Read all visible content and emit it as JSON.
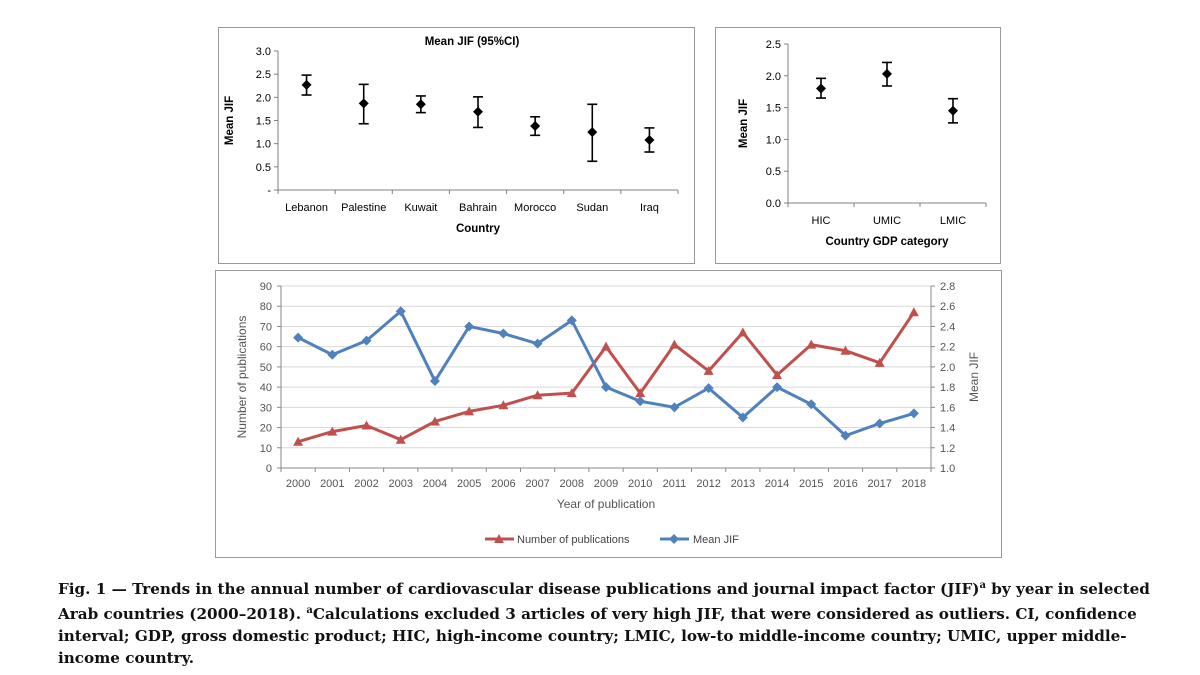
{
  "chart_data": [
    {
      "type": "errorbar",
      "title": "Mean JIF (95%CI)",
      "xlabel": "Country",
      "ylabel": "Mean JIF",
      "ylim": [
        0,
        3.0
      ],
      "yticks": [
        "-",
        "0.5",
        "1.0",
        "1.5",
        "2.0",
        "2.5",
        "3.0"
      ],
      "categories": [
        "Lebanon",
        "Palestine",
        "Kuwait",
        "Bahrain",
        "Morocco",
        "Sudan",
        "Iraq"
      ],
      "mean": [
        2.27,
        1.87,
        1.85,
        1.69,
        1.38,
        1.25,
        1.08
      ],
      "lower": [
        2.05,
        1.43,
        1.67,
        1.35,
        1.18,
        0.62,
        0.82
      ],
      "upper": [
        2.48,
        2.28,
        2.03,
        2.01,
        1.58,
        1.85,
        1.34
      ]
    },
    {
      "type": "errorbar",
      "title": "",
      "xlabel": "Country GDP category",
      "ylabel": "Mean JIF",
      "ylim": [
        0,
        2.5
      ],
      "yticks": [
        "0.0",
        "0.5",
        "1.0",
        "1.5",
        "2.0",
        "2.5"
      ],
      "categories": [
        "HIC",
        "UMIC",
        "LMIC"
      ],
      "mean": [
        1.8,
        2.03,
        1.45
      ],
      "lower": [
        1.65,
        1.84,
        1.26
      ],
      "upper": [
        1.96,
        2.21,
        1.64
      ]
    },
    {
      "type": "line",
      "title": "",
      "xlabel": "Year of publication",
      "ylabel": "Number of publications",
      "y2label": "Mean JIF",
      "x": [
        "2000",
        "2001",
        "2002",
        "2003",
        "2004",
        "2005",
        "2006",
        "2007",
        "2008",
        "2009",
        "2010",
        "2011",
        "2012",
        "2013",
        "2014",
        "2015",
        "2016",
        "2017",
        "2018"
      ],
      "ylim": [
        0,
        90
      ],
      "yticks": [
        "0",
        "10",
        "20",
        "30",
        "40",
        "50",
        "60",
        "70",
        "80",
        "90"
      ],
      "y2lim": [
        1.0,
        2.8
      ],
      "y2ticks": [
        "1.0",
        "1.2",
        "1.4",
        "1.6",
        "1.8",
        "2.0",
        "2.2",
        "2.4",
        "2.6",
        "2.8"
      ],
      "series": [
        {
          "name": "Number of publications",
          "axis": "left",
          "color": "#c0504d",
          "marker": "triangle",
          "values": [
            13,
            18,
            21,
            14,
            23,
            28,
            31,
            36,
            37,
            60,
            37,
            61,
            48,
            67,
            46,
            61,
            58,
            52,
            77
          ]
        },
        {
          "name": "Mean JIF",
          "axis": "right",
          "color": "#4f81bd",
          "marker": "diamond",
          "values": [
            2.29,
            2.12,
            2.26,
            2.55,
            1.86,
            2.4,
            2.33,
            2.23,
            2.46,
            1.8,
            1.66,
            1.6,
            1.79,
            1.5,
            1.8,
            1.63,
            1.32,
            1.44,
            1.54
          ]
        }
      ],
      "legend": "bottom"
    }
  ],
  "caption": {
    "lead": "Fig. 1 — Trends in the annual number of cardiovascular disease publications and journal impact factor (JIF)",
    "sup1": "a",
    "mid": " by year in selected Arab countries (2000–2018). ",
    "sup2": "a",
    "rest": "Calculations excluded 3 articles of very high JIF, that were considered as outliers. CI, confidence interval; GDP, gross domestic product; HIC, high-income country; LMIC, low-to middle-income country; UMIC, upper middle-income country."
  }
}
